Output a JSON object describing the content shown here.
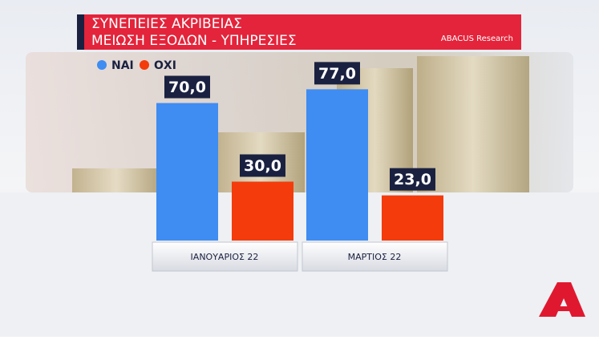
{
  "chart_data": {
    "type": "bar",
    "title": "ΣΥΝΕΠΕΙΕΣ ΑΚΡΙΒΕΙΑΣ",
    "subtitle": "ΜΕΙΩΣΗ ΕΞΟΔΩΝ - ΥΠΗΡΕΣΙΕΣ",
    "source": "ABACUS Research",
    "categories": [
      "ΙΑΝΟΥΑΡΙΟΣ 22",
      "ΜΑΡΤΙΟΣ 22"
    ],
    "series": [
      {
        "name": "ΝΑΙ",
        "color": "#3f8cf2",
        "values": [
          70,
          77
        ],
        "value_labels": [
          "70,0",
          "77,0"
        ]
      },
      {
        "name": "ΟΧΙ",
        "color": "#f43b0c",
        "values": [
          30,
          23
        ],
        "value_labels": [
          "30,0",
          "23,0"
        ]
      }
    ]
  }
}
